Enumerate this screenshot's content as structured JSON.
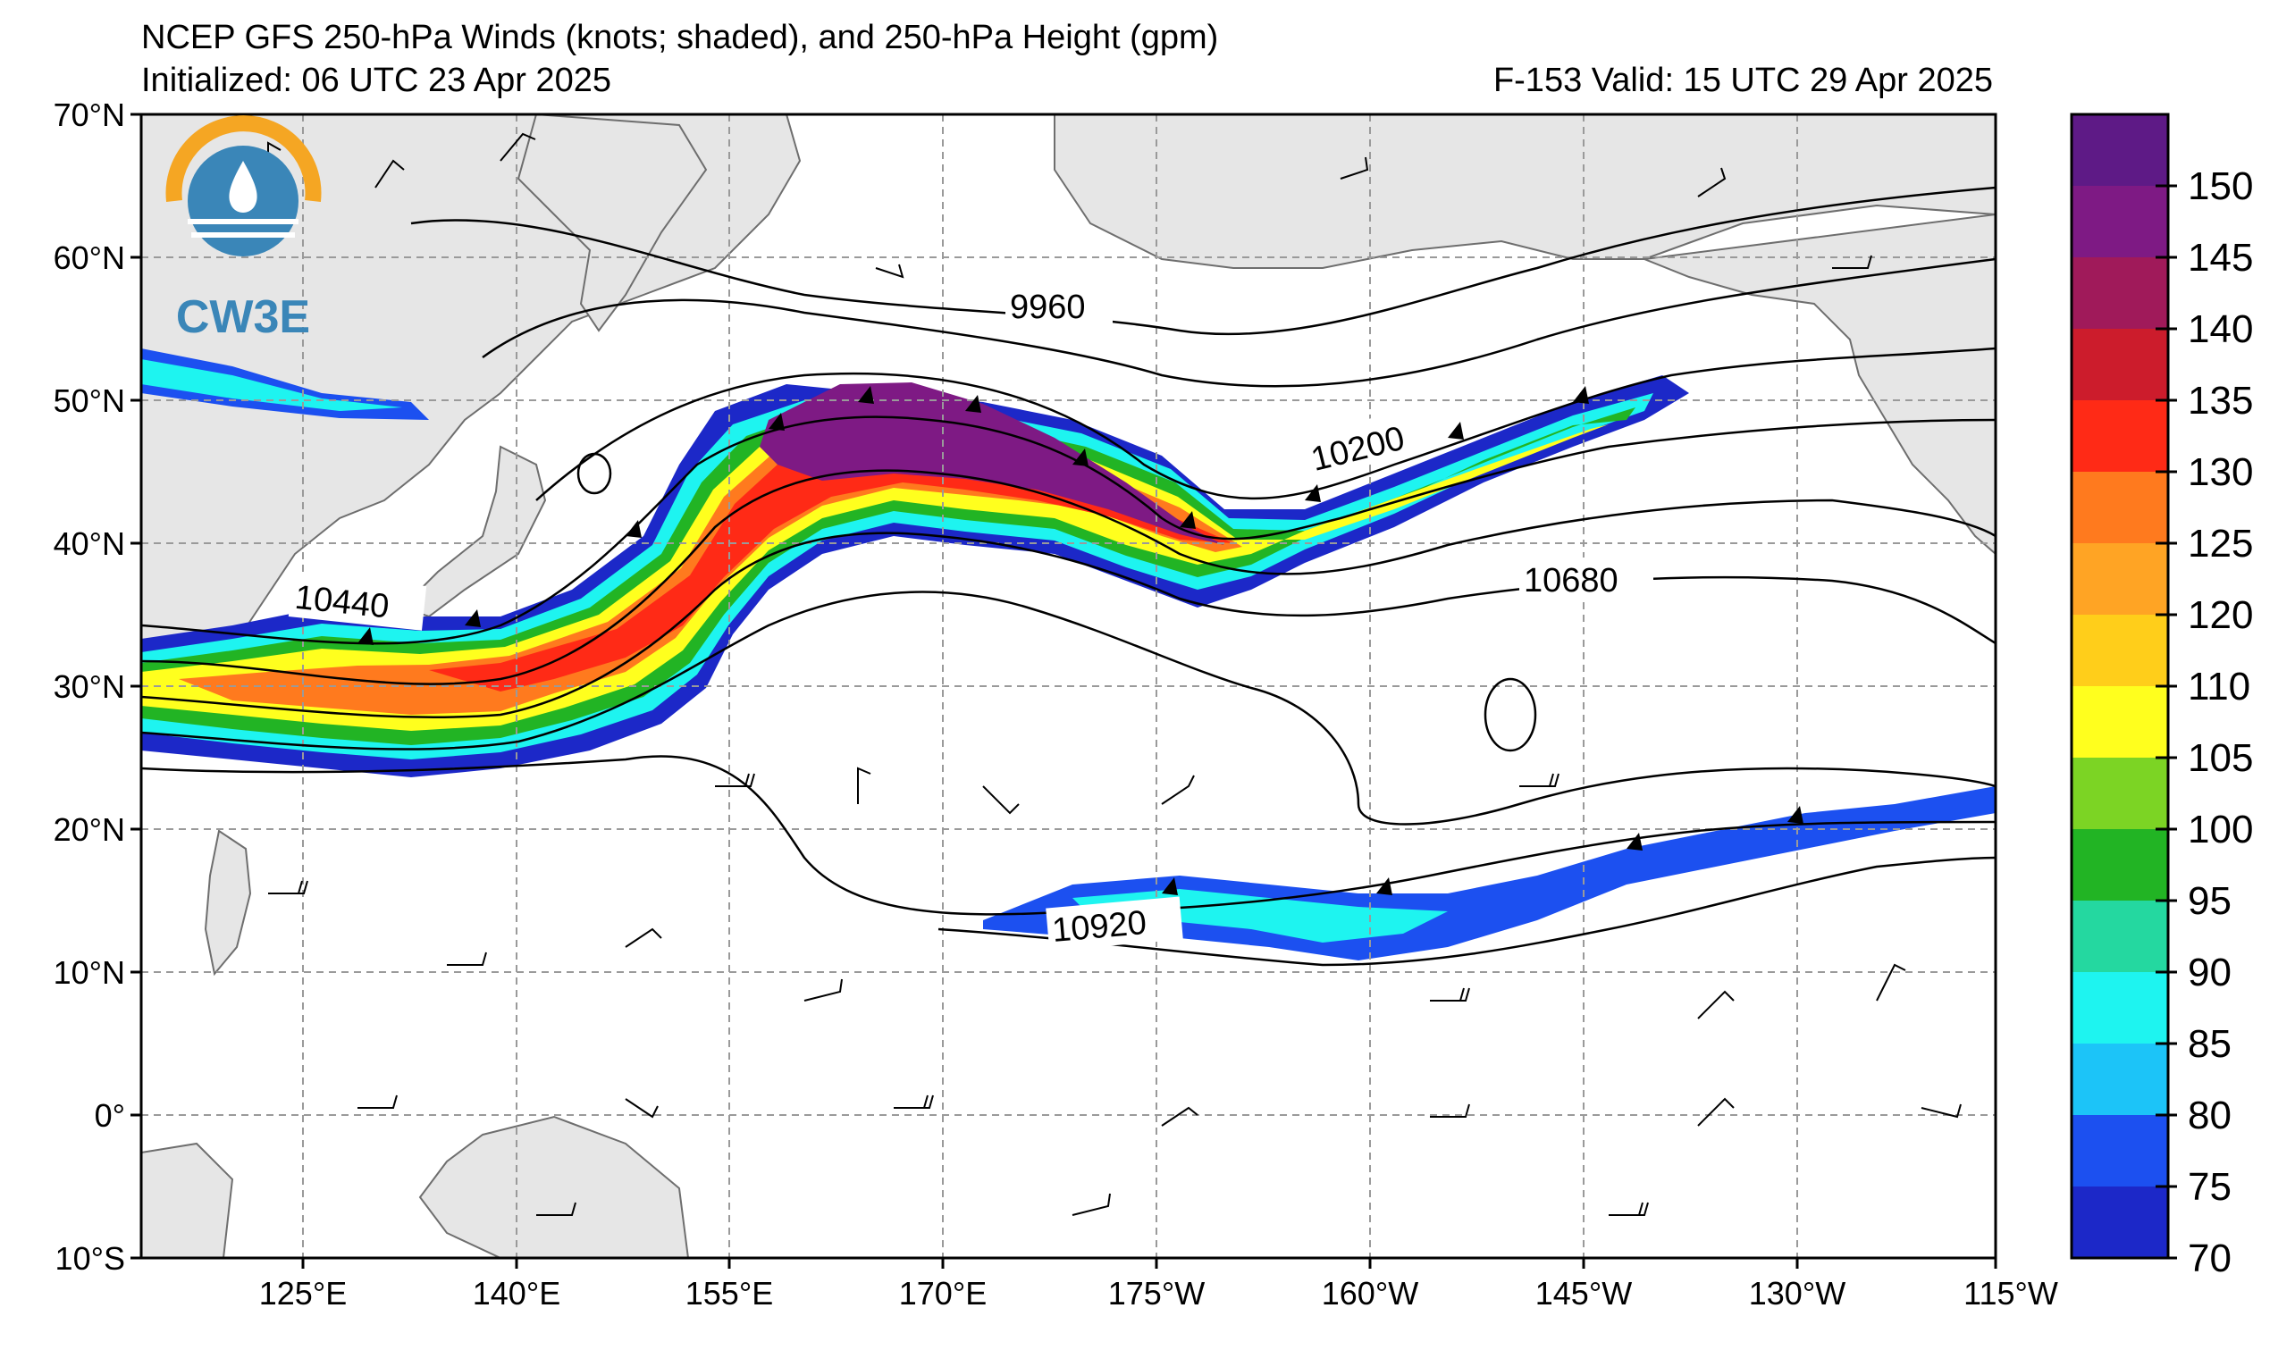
{
  "header": {
    "title": "NCEP GFS 250-hPa Winds (knots; shaded), and 250-hPa Height (gpm)",
    "initialized": "Initialized: 06 UTC 23 Apr 2025",
    "valid": "F-153  Valid: 15 UTC 29 Apr 2025"
  },
  "logo": {
    "text": "CW3E",
    "color": "#3a86b8",
    "ring_color": "#f5a623"
  },
  "map": {
    "lon_labels": [
      "125°E",
      "140°E",
      "155°E",
      "170°E",
      "175°W",
      "160°W",
      "145°W",
      "130°W",
      "115°W"
    ],
    "lat_labels": [
      "70°N",
      "60°N",
      "50°N",
      "40°N",
      "30°N",
      "20°N",
      "10°N",
      "0°",
      "10°S"
    ],
    "land_color": "#e6e6e6",
    "grid_color": "#9a9a9a"
  },
  "contours": {
    "labels": [
      "9960",
      "10200",
      "10440",
      "10680",
      "10920"
    ]
  },
  "colorbar": {
    "ticks": [
      "150",
      "145",
      "140",
      "135",
      "130",
      "125",
      "120",
      "110",
      "105",
      "100",
      "95",
      "90",
      "85",
      "80",
      "75",
      "70"
    ],
    "colors": [
      "#5e1a86",
      "#7e1a84",
      "#a01a5a",
      "#cc1c2c",
      "#ff2a16",
      "#ff7a1e",
      "#ffa424",
      "#ffce1a",
      "#ffff1e",
      "#7cd424",
      "#22b424",
      "#24d8a0",
      "#1ef4f0",
      "#1cc4f8",
      "#1c50f0",
      "#1c28c8"
    ]
  }
}
